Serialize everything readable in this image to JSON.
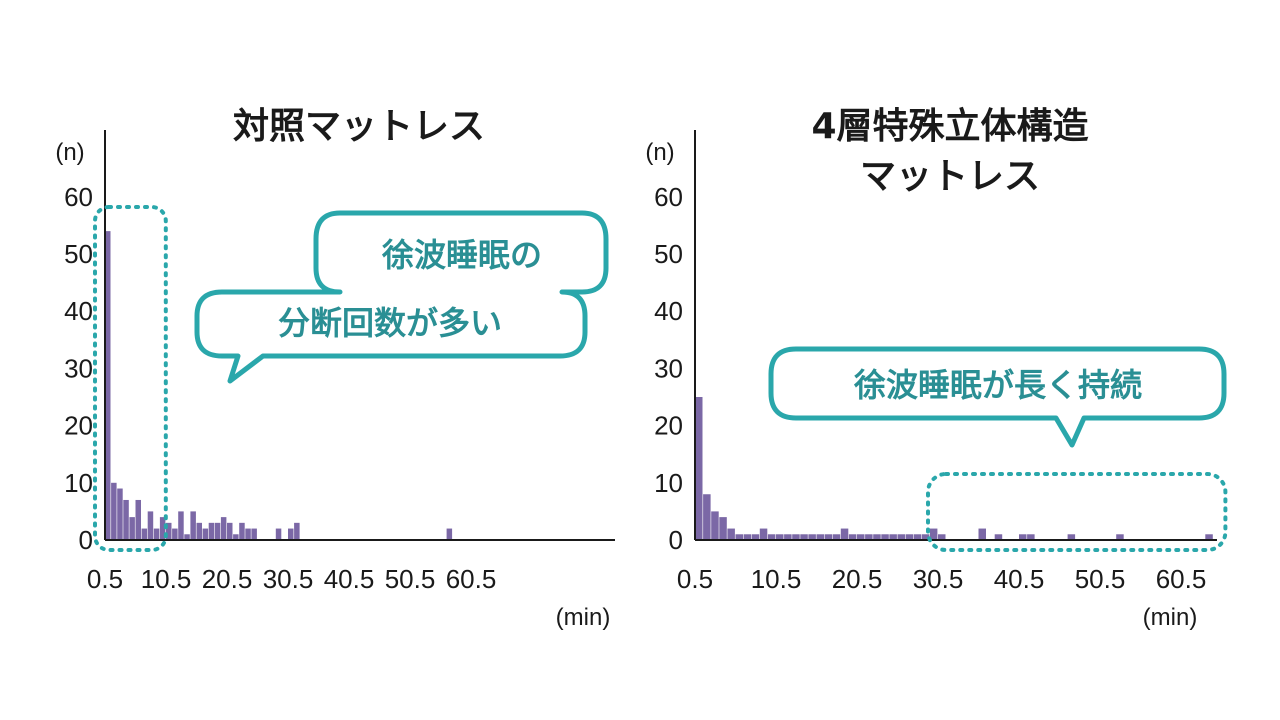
{
  "chart_data": [
    {
      "type": "bar",
      "title": "対照マットレス",
      "ylabel": "(n)",
      "xlabel": "(min)",
      "ylim": [
        0,
        60
      ],
      "yticks": [
        "0",
        "10",
        "20",
        "30",
        "40",
        "50",
        "60"
      ],
      "xticks": [
        "0.5",
        "10.5",
        "20.5",
        "30.5",
        "40.5",
        "50.5",
        "60.5"
      ],
      "bin_width": 1,
      "x": [
        0.5,
        1.5,
        2.5,
        3.5,
        4.5,
        5.5,
        6.5,
        7.5,
        8.5,
        9.5,
        10.5,
        11.5,
        12.5,
        13.5,
        14.5,
        15.5,
        16.5,
        17.5,
        18.5,
        19.5,
        20.5,
        21.5,
        22.5,
        23.5,
        24.5,
        28.5,
        30.5,
        31.5,
        56.5
      ],
      "values": [
        54,
        10,
        9,
        7,
        4,
        7,
        2,
        5,
        2,
        4,
        3,
        2,
        5,
        1,
        5,
        3,
        2,
        3,
        3,
        4,
        3,
        1,
        3,
        2,
        2,
        2,
        2,
        3,
        2
      ],
      "callout": {
        "lines": [
          "徐波睡眠の",
          "分断回数が多い"
        ],
        "highlight_x_range": [
          0.5,
          8.5
        ]
      },
      "colors": {
        "bar": "#7b68a6",
        "accent": "#2aa7ab",
        "axis": "#1a1a1a"
      },
      "grid": false
    },
    {
      "type": "bar",
      "title": [
        "4層特殊立体構造",
        "マットレス"
      ],
      "ylabel": "(n)",
      "xlabel": "(min)",
      "ylim": [
        0,
        60
      ],
      "yticks": [
        "0",
        "10",
        "20",
        "30",
        "40",
        "50",
        "60"
      ],
      "xticks": [
        "0.5",
        "10.5",
        "20.5",
        "30.5",
        "40.5",
        "50.5",
        "60.5"
      ],
      "bin_width": 1,
      "x": [
        0.5,
        1.5,
        2.5,
        3.5,
        4.5,
        5.5,
        6.5,
        7.5,
        8.5,
        9.5,
        10.5,
        11.5,
        12.5,
        13.5,
        14.5,
        15.5,
        16.5,
        17.5,
        18.5,
        19.5,
        20.5,
        21.5,
        22.5,
        23.5,
        24.5,
        25.5,
        26.5,
        27.5,
        28.5,
        29.5,
        30.5,
        35.5,
        37.5,
        40.5,
        41.5,
        46.5,
        52.5,
        63.5
      ],
      "values": [
        25,
        8,
        5,
        4,
        2,
        1,
        1,
        1,
        2,
        1,
        1,
        1,
        1,
        1,
        1,
        1,
        1,
        1,
        2,
        1,
        1,
        1,
        1,
        1,
        1,
        1,
        1,
        1,
        1,
        2,
        1,
        2,
        1,
        1,
        1,
        1,
        1,
        1
      ],
      "callout": {
        "lines": [
          "徐波睡眠が長く持続"
        ],
        "highlight_x_range": [
          30.5,
          64.5
        ]
      },
      "colors": {
        "bar": "#7b68a6",
        "accent": "#2aa7ab",
        "axis": "#1a1a1a"
      },
      "grid": false
    }
  ]
}
